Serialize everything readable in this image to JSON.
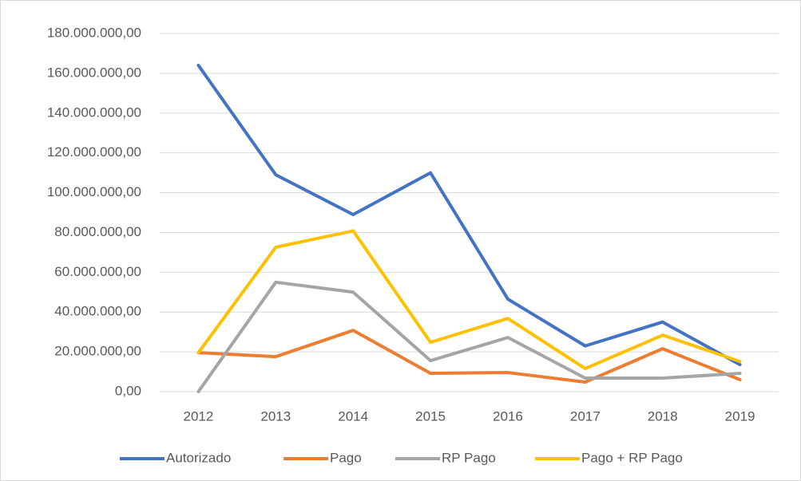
{
  "chart_data": {
    "type": "line",
    "categories": [
      "2012",
      "2013",
      "2014",
      "2015",
      "2016",
      "2017",
      "2018",
      "2019"
    ],
    "series": [
      {
        "name": "Autorizado",
        "color": "#4472c4",
        "values": [
          164000000,
          109000000,
          89000000,
          110000000,
          46500000,
          23000000,
          35000000,
          13600000
        ]
      },
      {
        "name": "Pago",
        "color": "#ed7d31",
        "values": [
          19600000,
          17600000,
          30800000,
          9200000,
          9600000,
          4800000,
          21600000,
          6000000
        ]
      },
      {
        "name": "RP Pago",
        "color": "#a5a5a5",
        "values": [
          0,
          55000000,
          50000000,
          15600000,
          27200000,
          6800000,
          6800000,
          9200000
        ]
      },
      {
        "name": "Pago + RP Pago",
        "color": "#ffc000",
        "values": [
          19600000,
          72600000,
          80800000,
          24800000,
          36800000,
          11600000,
          28400000,
          15200000
        ]
      }
    ],
    "ylim": [
      0,
      180000000
    ],
    "yticks": [
      {
        "value": 0,
        "label": "0,00"
      },
      {
        "value": 20000000,
        "label": "20.000.000,00"
      },
      {
        "value": 40000000,
        "label": "40.000.000,00"
      },
      {
        "value": 60000000,
        "label": "60.000.000,00"
      },
      {
        "value": 80000000,
        "label": "80.000.000,00"
      },
      {
        "value": 100000000,
        "label": "100.000.000,00"
      },
      {
        "value": 120000000,
        "label": "120.000.000,00"
      },
      {
        "value": 140000000,
        "label": "140.000.000,00"
      },
      {
        "value": 160000000,
        "label": "160.000.000,00"
      },
      {
        "value": 180000000,
        "label": "180.000.000,00"
      }
    ],
    "grid": true,
    "legend": "bottom"
  }
}
